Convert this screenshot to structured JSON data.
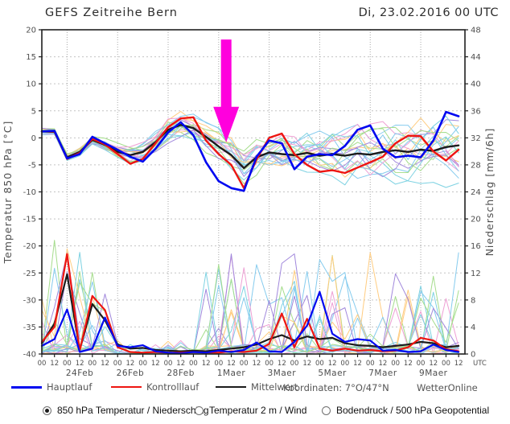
{
  "header": {
    "title": "GEFS Zeitreihe Bern",
    "run_time": "Di, 23.02.2016 00 UTC"
  },
  "chart_data": {
    "type": "line",
    "title": "GEFS Zeitreihe Bern",
    "subtitle": "Di, 23.02.2016 00 UTC",
    "step_days": 0.5,
    "x_axis": {
      "days_total": 16.75,
      "tick_step_days": 0.5,
      "hour_tick_labels": [
        "00",
        "12"
      ],
      "end_label": "UTC",
      "grid_days": [
        1,
        3,
        5,
        7,
        9,
        11,
        13,
        15
      ],
      "date_labels": [
        {
          "label": "24Feb",
          "day": 1.5
        },
        {
          "label": "26Feb",
          "day": 3.5
        },
        {
          "label": "28Feb",
          "day": 5.5
        },
        {
          "label": "1Maer",
          "day": 7.5
        },
        {
          "label": "3Maer",
          "day": 9.5
        },
        {
          "label": "5Maer",
          "day": 11.5
        },
        {
          "label": "7Maer",
          "day": 13.5
        },
        {
          "label": "9Maer",
          "day": 15.5
        }
      ]
    },
    "y_left": {
      "label": "Temperatur 850 hPa [°C]",
      "min": -40,
      "max": 20,
      "step": 5
    },
    "y_right": {
      "label": "Niederschlag [mm/6h]",
      "min": 0,
      "max": 48,
      "step": 4
    },
    "grid": true,
    "legend_position": "bottom",
    "series": [
      {
        "name": "Mittelwert",
        "axis": "precip",
        "color": "#1c1c1c",
        "width": 2.2,
        "values": [
          1.6,
          4.5,
          11.8,
          0.6,
          7.4,
          5.0,
          1.4,
          0.8,
          0.9,
          0.6,
          0.5,
          0.4,
          0.5,
          0.4,
          0.6,
          0.8,
          1.0,
          1.4,
          2.2,
          2.8,
          2.0,
          2.6,
          2.2,
          2.4,
          1.6,
          1.3,
          1.2,
          1.0,
          1.2,
          1.4,
          1.8,
          1.6,
          1.0,
          1.2
        ]
      },
      {
        "name": "Kontrolllauf",
        "axis": "precip",
        "color": "#ee1511",
        "width": 2.2,
        "values": [
          1.8,
          4.0,
          14.8,
          0.5,
          8.6,
          6.5,
          1.0,
          0.3,
          0.2,
          0.3,
          0.2,
          0.2,
          0.3,
          0.2,
          0.2,
          0.4,
          0.3,
          0.5,
          1.5,
          6.0,
          1.0,
          5.2,
          0.8,
          0.5,
          0.8,
          0.5,
          0.6,
          0.4,
          0.5,
          1.0,
          2.4,
          2.0,
          0.7,
          0.4
        ]
      },
      {
        "name": "Hauptlauf",
        "axis": "precip",
        "color": "#0008f0",
        "width": 2.2,
        "values": [
          1.2,
          2.2,
          6.6,
          0.3,
          0.8,
          5.4,
          1.2,
          1.0,
          1.3,
          0.4,
          0.2,
          0.1,
          0.3,
          0.2,
          0.5,
          0.3,
          0.6,
          1.7,
          0.4,
          0.3,
          1.8,
          4.2,
          9.2,
          3.0,
          1.8,
          2.2,
          2.0,
          0.5,
          0.6,
          0.3,
          0.4,
          1.4,
          0.6,
          0.3
        ]
      },
      {
        "name": "Mittelwert",
        "axis": "temp",
        "color": "#1c1c1c",
        "width": 2.4,
        "values": [
          1.2,
          1.1,
          -3.6,
          -2.6,
          -0.4,
          -1.3,
          -2.6,
          -3.2,
          -2.6,
          -0.8,
          1.5,
          2.4,
          1.8,
          0.2,
          -1.6,
          -3.2,
          -5.6,
          -3.6,
          -2.7,
          -3.0,
          -3.2,
          -2.8,
          -3.3,
          -3.0,
          -3.3,
          -2.9,
          -3.1,
          -2.6,
          -2.3,
          -2.6,
          -2.2,
          -2.4,
          -1.7,
          -1.4
        ]
      },
      {
        "name": "Kontrolllauf",
        "axis": "temp",
        "color": "#ee1511",
        "width": 2.4,
        "values": [
          1.2,
          1.2,
          -3.9,
          -2.8,
          -0.2,
          -1.2,
          -3.0,
          -4.8,
          -3.9,
          -1.0,
          2.0,
          3.6,
          3.8,
          -0.5,
          -3.0,
          -5.0,
          -9.3,
          -4.0,
          0.0,
          0.8,
          -3.0,
          -5.0,
          -6.3,
          -6.0,
          -6.5,
          -5.5,
          -4.5,
          -3.5,
          -1.0,
          0.4,
          0.3,
          -2.5,
          -4.2,
          -2.2
        ]
      },
      {
        "name": "Hauptlauf",
        "axis": "temp",
        "color": "#0008f0",
        "width": 2.6,
        "values": [
          1.2,
          1.3,
          -3.8,
          -3.0,
          0.2,
          -1.0,
          -2.2,
          -3.5,
          -4.4,
          -2.0,
          1.0,
          2.9,
          0.5,
          -4.5,
          -8.0,
          -9.3,
          -9.8,
          -3.5,
          -0.5,
          -1.0,
          -5.8,
          -3.5,
          -3.0,
          -3.2,
          -1.5,
          1.5,
          2.3,
          -2.0,
          -3.6,
          -3.3,
          -3.6,
          -0.5,
          4.8,
          4.0
        ]
      }
    ],
    "ensemble": {
      "count": 20,
      "seed": 7,
      "line_width": 1,
      "palette": [
        "#85cbee",
        "#a5dd8c",
        "#ffcc80",
        "#a188dc",
        "#ee9fd4",
        "#7ed2e2"
      ]
    },
    "annotation_arrow": {
      "x_day": 7.3,
      "top_temp": 18.2,
      "tip_temp": -0.8,
      "body_half_w": 6.5,
      "head_half_w": 16,
      "head_len": 44,
      "color": "#ff00dd"
    }
  },
  "legend": {
    "items": [
      {
        "label": "Hauptlauf",
        "color": "#0008f0",
        "thickness": 3
      },
      {
        "label": "Kontrolllauf",
        "color": "#ee1511",
        "thickness": 2
      },
      {
        "label": "Mittelwert",
        "color": "#1c1c1c",
        "thickness": 2
      }
    ],
    "coordinates": "Koordinaten: 7°O/47°N",
    "brand": "WetterOnline"
  },
  "footer_controls": {
    "options": [
      {
        "label": "850 hPa Temperatur / Niederschlag",
        "selected": true
      },
      {
        "label": "Temperatur 2 m / Wind",
        "selected": false
      },
      {
        "label": "Bodendruck / 500 hPa Geopotential",
        "selected": false
      }
    ]
  }
}
